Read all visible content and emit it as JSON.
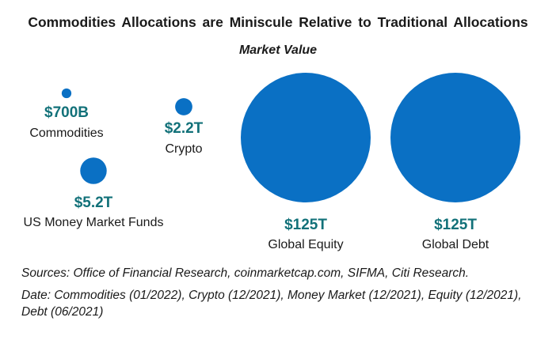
{
  "chart_data": {
    "type": "bubble",
    "title": "Commodities  Allocations  are Miniscule  Relative to Traditional  Allocations",
    "subtitle": "Market  Value",
    "bubble_color": "#0A70C4",
    "value_label_color": "#127179",
    "unit": "USD trillions",
    "items": [
      {
        "name": "Commodities",
        "value_label": "$700B",
        "value": 0.7
      },
      {
        "name": "Crypto",
        "value_label": "$2.2T",
        "value": 2.2
      },
      {
        "name": "US Money Market Funds",
        "value_label": "$5.2T",
        "value": 5.2
      },
      {
        "name": "Global Equity",
        "value_label": "$125T",
        "value": 125
      },
      {
        "name": "Global Debt",
        "value_label": "$125T",
        "value": 125
      }
    ]
  },
  "footnotes": {
    "sources": "Sources: Office of Financial Research, coinmarketcap.com, SIFMA, Citi Research.",
    "dates": "Date: Commodities (01/2022), Crypto (12/2021), Money Market (12/2021), Equity (12/2021), Debt (06/2021)"
  }
}
